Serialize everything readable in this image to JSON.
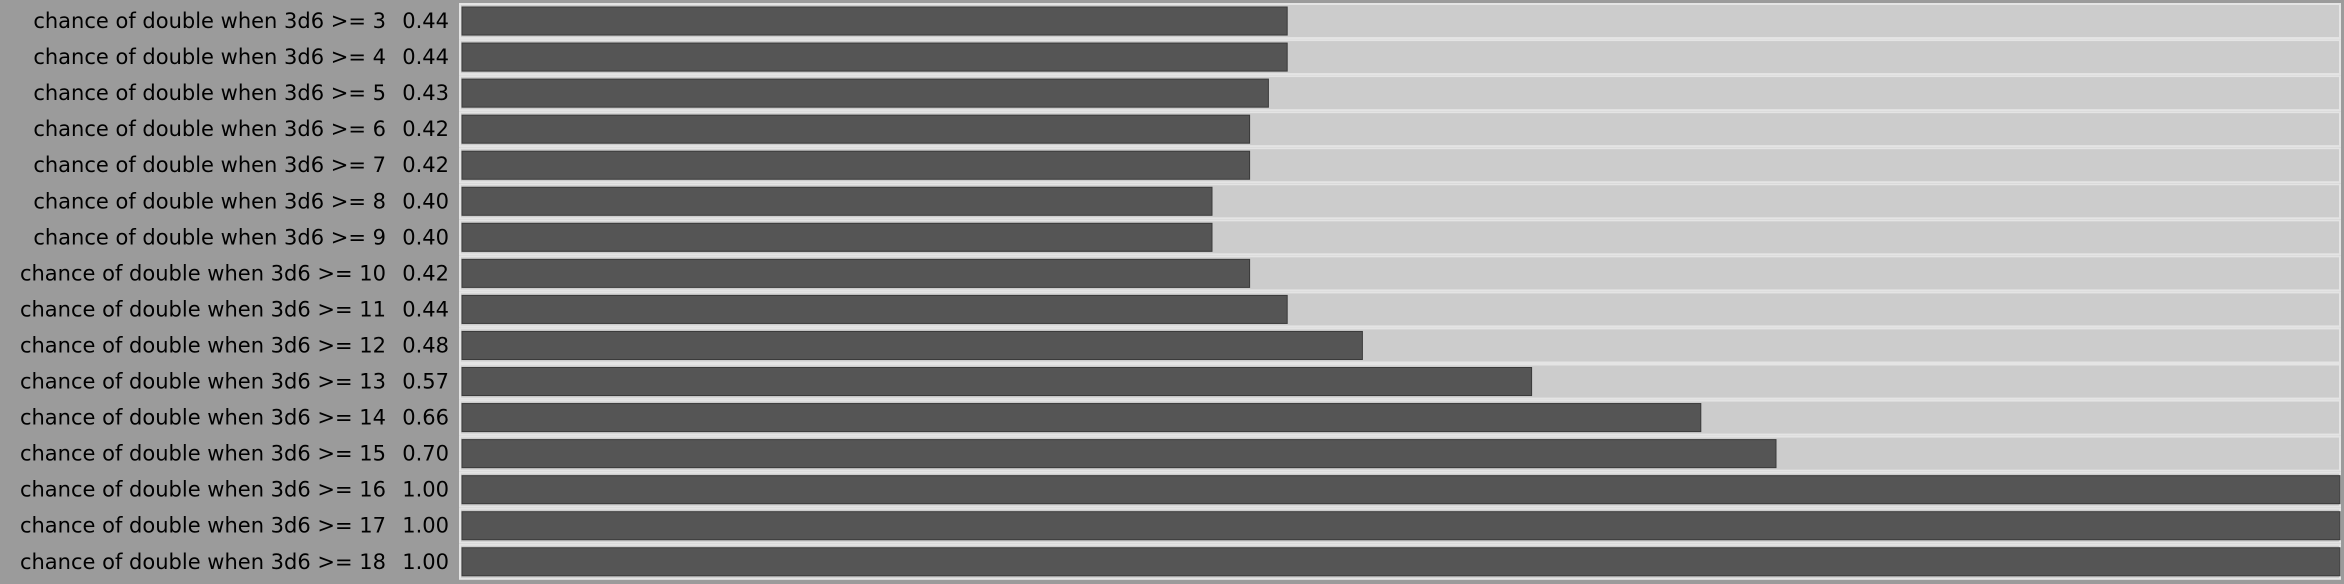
{
  "chart_data": {
    "type": "bar",
    "orientation": "horizontal",
    "categories": [
      "chance of double when 3d6 >= 3",
      "chance of double when 3d6 >= 4",
      "chance of double when 3d6 >= 5",
      "chance of double when 3d6 >= 6",
      "chance of double when 3d6 >= 7",
      "chance of double when 3d6 >= 8",
      "chance of double when 3d6 >= 9",
      "chance of double when 3d6 >= 10",
      "chance of double when 3d6 >= 11",
      "chance of double when 3d6 >= 12",
      "chance of double when 3d6 >= 13",
      "chance of double when 3d6 >= 14",
      "chance of double when 3d6 >= 15",
      "chance of double when 3d6 >= 16",
      "chance of double when 3d6 >= 17",
      "chance of double when 3d6 >= 18"
    ],
    "values": [
      0.44,
      0.44,
      0.43,
      0.42,
      0.42,
      0.4,
      0.4,
      0.42,
      0.44,
      0.48,
      0.57,
      0.66,
      0.7,
      1,
      1,
      1
    ],
    "value_labels": [
      "0.44",
      "0.44",
      "0.43",
      "0.42",
      "0.42",
      "0.40",
      "0.40",
      "0.42",
      "0.44",
      "0.48",
      "0.57",
      "0.66",
      "0.70",
      "1.00",
      "1.00",
      "1.00"
    ],
    "xlim": [
      0,
      1
    ],
    "color": "#555555"
  }
}
